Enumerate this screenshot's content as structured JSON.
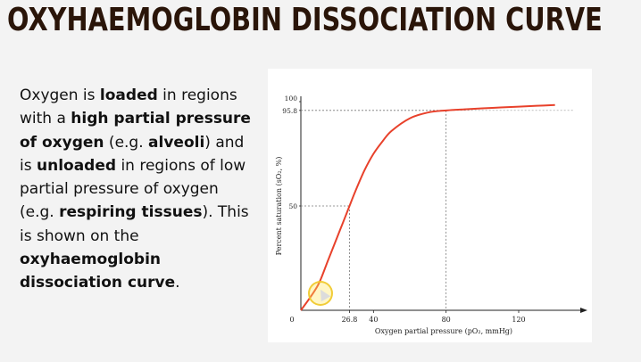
{
  "slide": {
    "title": "OXYHAEMOGLOBIN DISSOCIATION CURVE",
    "paragraph": [
      {
        "text": "Oxygen is ",
        "bold": false
      },
      {
        "text": "loaded",
        "bold": true
      },
      {
        "text": " in regions with a ",
        "bold": false
      },
      {
        "text": "high partial pressure of oxygen",
        "bold": true
      },
      {
        "text": " (e.g. ",
        "bold": false
      },
      {
        "text": "alveoli",
        "bold": true
      },
      {
        "text": ") and is ",
        "bold": false
      },
      {
        "text": "unloaded",
        "bold": true
      },
      {
        "text": " in regions of low partial pressure of oxygen (e.g. ",
        "bold": false
      },
      {
        "text": "respiring tissues",
        "bold": true
      },
      {
        "text": "). This is shown on the ",
        "bold": false
      },
      {
        "text": "oxyhaemoglobin dissociation curve",
        "bold": true
      },
      {
        "text": ".",
        "bold": false
      }
    ]
  },
  "chart_data": {
    "type": "line",
    "xlabel": "Oxygen partial pressure (pO₂, mmHg)",
    "ylabel": "Percent saturation (sO₂, %)",
    "x_ticks": [
      "0",
      "26.8",
      "40",
      "80",
      "120"
    ],
    "y_ticks": [
      "100",
      "95.8",
      "50"
    ],
    "xlim": [
      0,
      150
    ],
    "ylim": [
      0,
      100
    ],
    "reference_points": [
      {
        "x": 26.8,
        "y": 50
      },
      {
        "x": 80,
        "y": 95.8
      }
    ],
    "series": [
      {
        "color": "#e8412b",
        "x": [
          0,
          5,
          10,
          15,
          20,
          25,
          26.8,
          30,
          35,
          40,
          45,
          50,
          60,
          70,
          80,
          90,
          100,
          110,
          120,
          130,
          140
        ],
        "y": [
          0,
          6,
          13,
          24,
          35,
          46,
          50,
          57,
          67,
          75,
          81,
          86,
          92,
          94.8,
          95.8,
          96.3,
          96.8,
          97.2,
          97.6,
          98,
          98.4
        ]
      }
    ]
  }
}
